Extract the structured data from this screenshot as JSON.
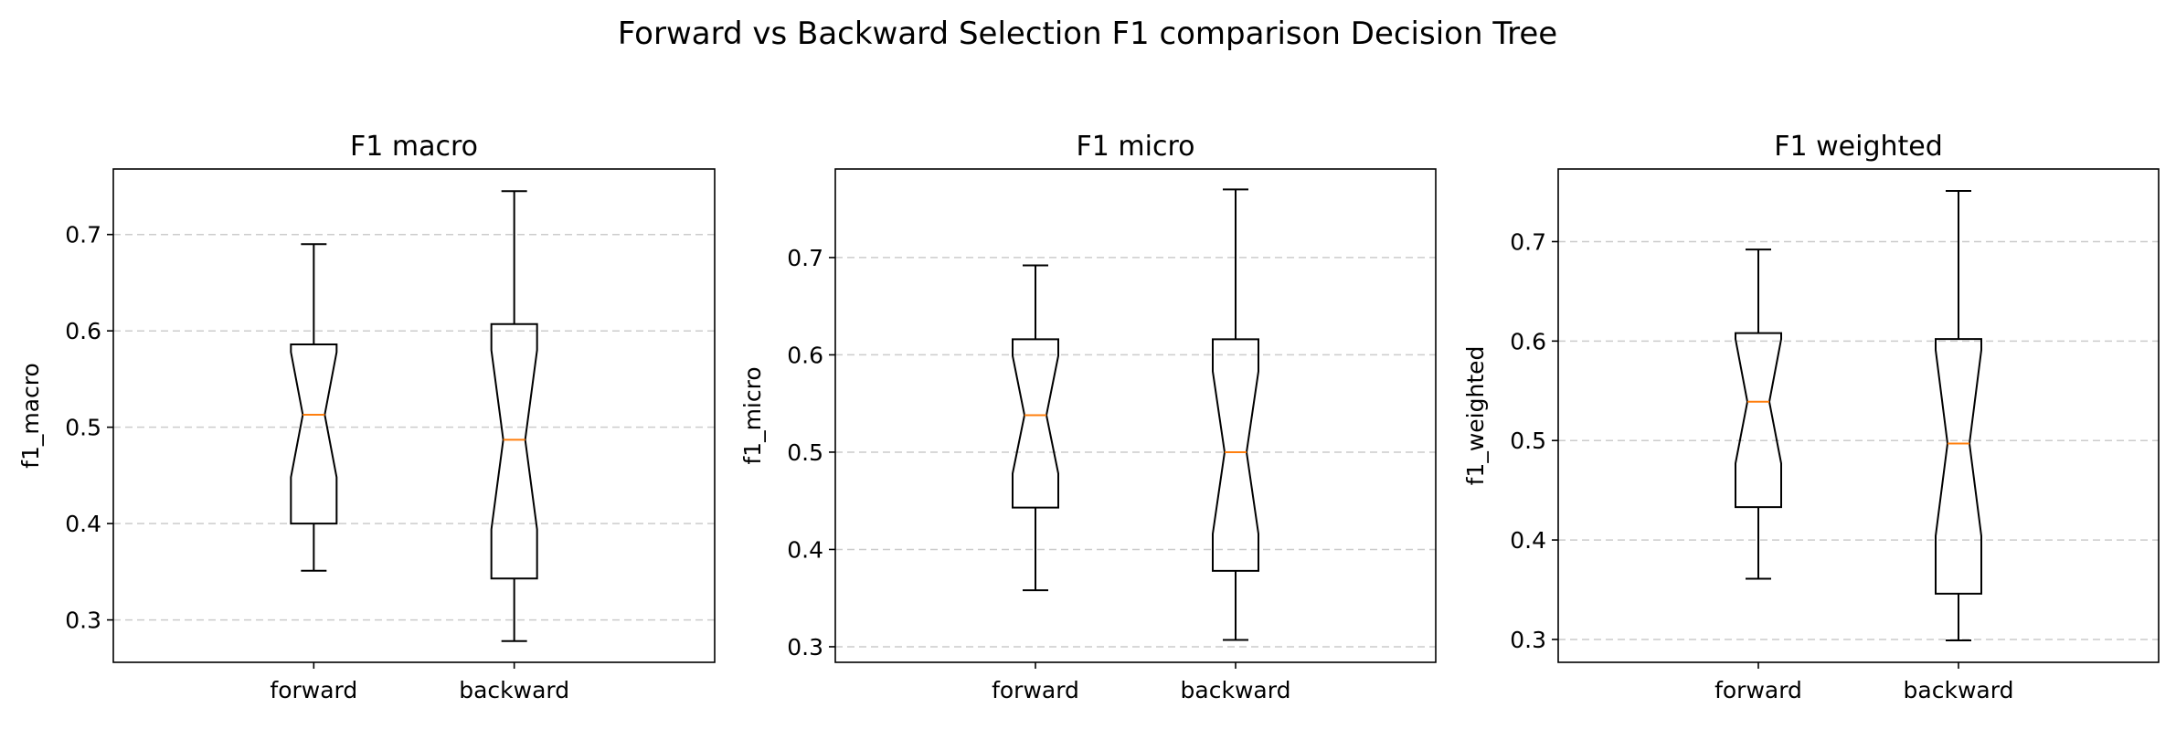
{
  "title": "Forward vs Backward Selection F1 comparison Decision Tree",
  "colors": {
    "box": "#000000",
    "median": "#ff7f0e",
    "grid": "#cccccc",
    "axes": "#000000"
  },
  "chart_data": [
    {
      "type": "box",
      "title": "F1 macro",
      "xlabel": "",
      "ylabel": "f1_macro",
      "ylim": [
        0.256,
        0.768
      ],
      "yticks": [
        0.3,
        0.4,
        0.5,
        0.6,
        0.7
      ],
      "ytick_labels": [
        "0.3",
        "0.4",
        "0.5",
        "0.6",
        "0.7"
      ],
      "grid": "y-dashed",
      "notched": true,
      "categories": [
        "forward",
        "backward"
      ],
      "boxes": [
        {
          "name": "forward",
          "whislo": 0.351,
          "q1": 0.4,
          "med": 0.513,
          "q3": 0.586,
          "whishi": 0.69,
          "notch_lo": 0.448,
          "notch_hi": 0.578
        },
        {
          "name": "backward",
          "whislo": 0.278,
          "q1": 0.343,
          "med": 0.487,
          "q3": 0.607,
          "whishi": 0.745,
          "notch_lo": 0.394,
          "notch_hi": 0.58
        }
      ]
    },
    {
      "type": "box",
      "title": "F1 micro",
      "xlabel": "",
      "ylabel": "f1_micro",
      "ylim": [
        0.284,
        0.791
      ],
      "yticks": [
        0.3,
        0.4,
        0.5,
        0.6,
        0.7
      ],
      "ytick_labels": [
        "0.3",
        "0.4",
        "0.5",
        "0.6",
        "0.7"
      ],
      "grid": "y-dashed",
      "notched": true,
      "categories": [
        "forward",
        "backward"
      ],
      "boxes": [
        {
          "name": "forward",
          "whislo": 0.358,
          "q1": 0.443,
          "med": 0.538,
          "q3": 0.616,
          "whishi": 0.692,
          "notch_lo": 0.478,
          "notch_hi": 0.599
        },
        {
          "name": "backward",
          "whislo": 0.307,
          "q1": 0.378,
          "med": 0.5,
          "q3": 0.616,
          "whishi": 0.77,
          "notch_lo": 0.416,
          "notch_hi": 0.583
        }
      ]
    },
    {
      "type": "box",
      "title": "F1 weighted",
      "xlabel": "",
      "ylabel": "f1_weighted",
      "ylim": [
        0.277,
        0.773
      ],
      "yticks": [
        0.3,
        0.4,
        0.5,
        0.6,
        0.7
      ],
      "ytick_labels": [
        "0.3",
        "0.4",
        "0.5",
        "0.6",
        "0.7"
      ],
      "grid": "y-dashed",
      "notched": true,
      "categories": [
        "forward",
        "backward"
      ],
      "boxes": [
        {
          "name": "forward",
          "whislo": 0.361,
          "q1": 0.433,
          "med": 0.539,
          "q3": 0.608,
          "whishi": 0.692,
          "notch_lo": 0.477,
          "notch_hi": 0.602
        },
        {
          "name": "backward",
          "whislo": 0.299,
          "q1": 0.346,
          "med": 0.497,
          "q3": 0.602,
          "whishi": 0.751,
          "notch_lo": 0.404,
          "notch_hi": 0.591
        }
      ]
    }
  ]
}
